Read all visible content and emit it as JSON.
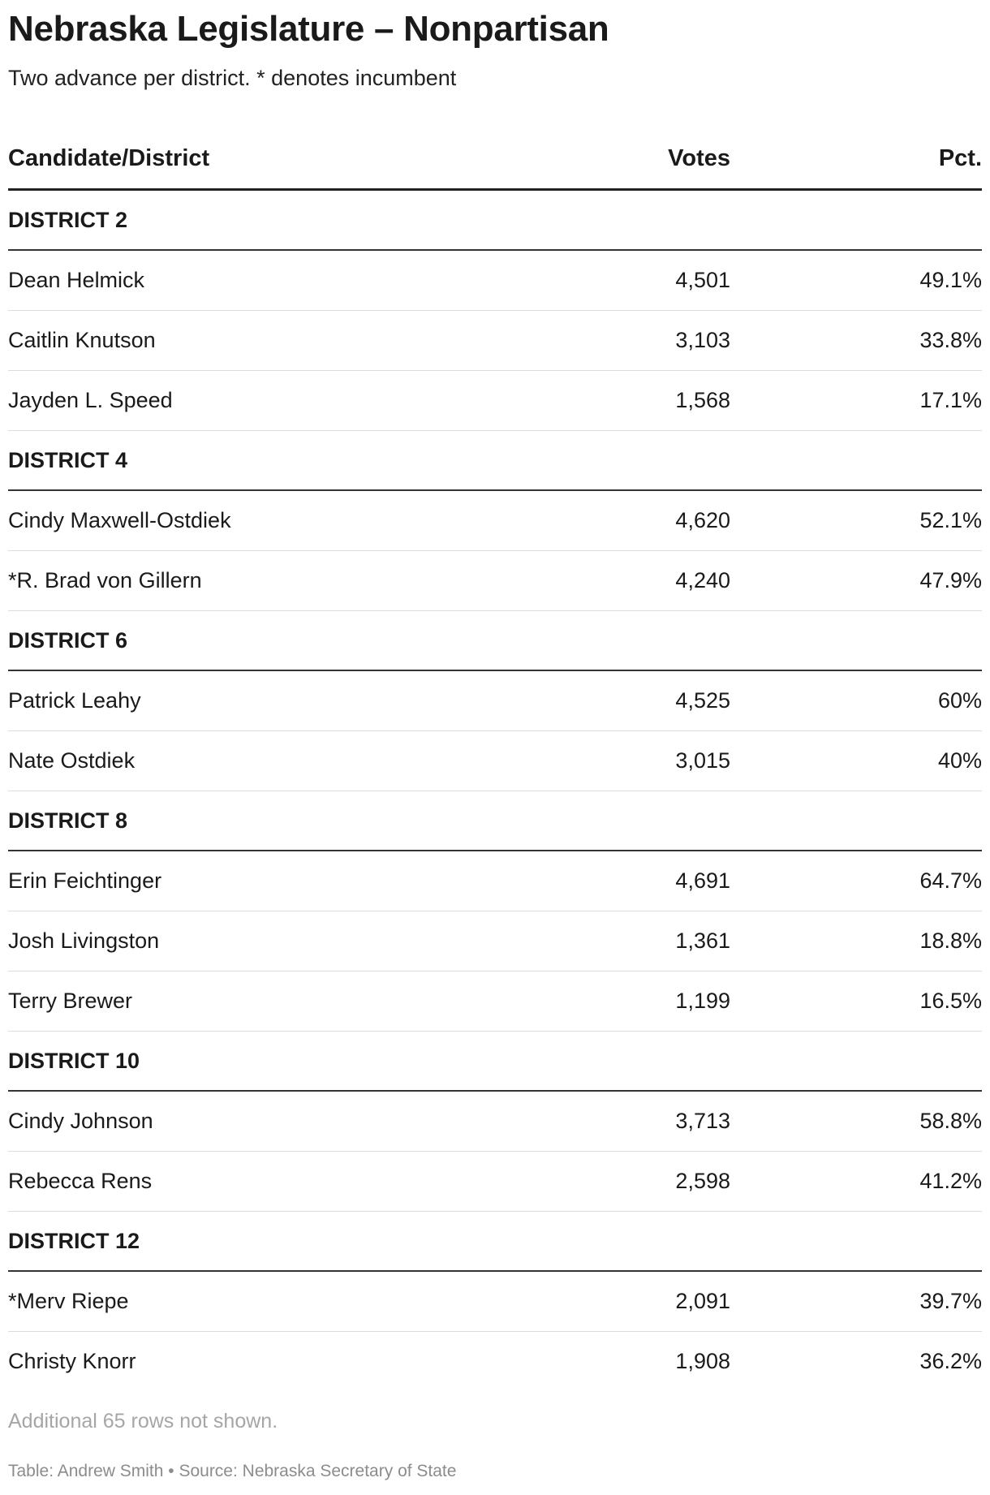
{
  "title": "Nebraska Legislature – Nonpartisan",
  "subtitle": "Two advance per district. * denotes incumbent",
  "table": {
    "headers": {
      "candidate": "Candidate/District",
      "votes": "Votes",
      "pct": "Pct."
    },
    "districts": [
      {
        "name": "DISTRICT 2",
        "candidates": [
          {
            "name": "Dean Helmick",
            "votes": "4,501",
            "pct": "49.1%"
          },
          {
            "name": "Caitlin Knutson",
            "votes": "3,103",
            "pct": "33.8%"
          },
          {
            "name": "Jayden L. Speed",
            "votes": "1,568",
            "pct": "17.1%"
          }
        ]
      },
      {
        "name": "DISTRICT 4",
        "candidates": [
          {
            "name": "Cindy Maxwell-Ostdiek",
            "votes": "4,620",
            "pct": "52.1%"
          },
          {
            "name": "*R. Brad von Gillern",
            "votes": "4,240",
            "pct": "47.9%"
          }
        ]
      },
      {
        "name": "DISTRICT 6",
        "candidates": [
          {
            "name": "Patrick Leahy",
            "votes": "4,525",
            "pct": "60%"
          },
          {
            "name": "Nate Ostdiek",
            "votes": "3,015",
            "pct": "40%"
          }
        ]
      },
      {
        "name": "DISTRICT 8",
        "candidates": [
          {
            "name": "Erin Feichtinger",
            "votes": "4,691",
            "pct": "64.7%"
          },
          {
            "name": "Josh Livingston",
            "votes": "1,361",
            "pct": "18.8%"
          },
          {
            "name": "Terry Brewer",
            "votes": "1,199",
            "pct": "16.5%"
          }
        ]
      },
      {
        "name": "DISTRICT 10",
        "candidates": [
          {
            "name": "Cindy Johnson",
            "votes": "3,713",
            "pct": "58.8%"
          },
          {
            "name": "Rebecca Rens",
            "votes": "2,598",
            "pct": "41.2%"
          }
        ]
      },
      {
        "name": "DISTRICT 12",
        "candidates": [
          {
            "name": "*Merv Riepe",
            "votes": "2,091",
            "pct": "39.7%"
          },
          {
            "name": "Christy Knorr",
            "votes": "1,908",
            "pct": "36.2%"
          }
        ]
      }
    ]
  },
  "note": "Additional 65 rows not shown.",
  "footer": "Table: Andrew Smith • Source: Nebraska Secretary of State"
}
